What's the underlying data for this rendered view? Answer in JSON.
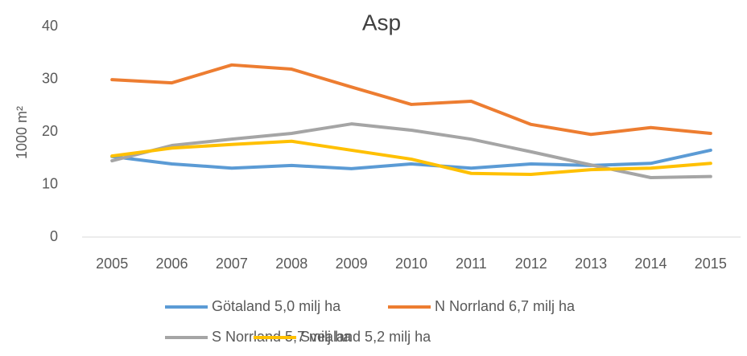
{
  "chart_data": {
    "type": "line",
    "title": "Asp",
    "ylabel": "1000 m²",
    "categories": [
      "2005",
      "2006",
      "2007",
      "2008",
      "2009",
      "2010",
      "2011",
      "2012",
      "2013",
      "2014",
      "2015"
    ],
    "series": [
      {
        "name": "Götaland 5,0 milj ha",
        "color": "#5b9bd5",
        "values": [
          15.3,
          13.9,
          13.1,
          13.6,
          13.0,
          13.9,
          13.1,
          13.9,
          13.6,
          14.0,
          16.5
        ]
      },
      {
        "name": "N Norrland 6,7 milj ha",
        "color": "#ed7d31",
        "values": [
          29.9,
          29.3,
          32.7,
          31.9,
          28.5,
          25.2,
          25.8,
          21.4,
          19.5,
          20.8,
          19.7
        ]
      },
      {
        "name": "S Norrland 5,7 milj ha",
        "color": "#a5a5a5",
        "values": [
          14.5,
          17.4,
          18.6,
          19.7,
          21.5,
          20.3,
          18.6,
          16.2,
          13.7,
          11.3,
          11.5
        ]
      },
      {
        "name": "Svealand 5,2 milj ha",
        "color": "#ffc000",
        "values": [
          15.4,
          16.9,
          17.6,
          18.2,
          16.5,
          14.8,
          12.1,
          11.9,
          12.8,
          13.1,
          14.0
        ]
      }
    ],
    "ylim": [
      0,
      40
    ],
    "yticks": [
      0,
      10,
      20,
      30,
      40
    ],
    "grid": false,
    "legend": "bottom"
  }
}
